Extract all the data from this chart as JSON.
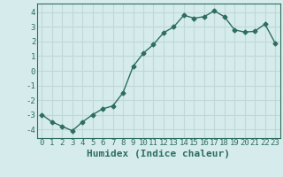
{
  "x": [
    0,
    1,
    2,
    3,
    4,
    5,
    6,
    7,
    8,
    9,
    10,
    11,
    12,
    13,
    14,
    15,
    16,
    17,
    18,
    19,
    20,
    21,
    22,
    23
  ],
  "y": [
    -3.0,
    -3.5,
    -3.8,
    -4.1,
    -3.5,
    -3.0,
    -2.6,
    -2.4,
    -1.5,
    0.3,
    1.2,
    1.8,
    2.6,
    3.0,
    3.8,
    3.6,
    3.7,
    4.1,
    3.7,
    2.8,
    2.65,
    2.7,
    3.2,
    1.9
  ],
  "xlabel": "Humidex (Indice chaleur)",
  "xlim": [
    -0.5,
    23.5
  ],
  "ylim": [
    -4.6,
    4.6
  ],
  "yticks": [
    -4,
    -3,
    -2,
    -1,
    0,
    1,
    2,
    3,
    4
  ],
  "xticks": [
    0,
    1,
    2,
    3,
    4,
    5,
    6,
    7,
    8,
    9,
    10,
    11,
    12,
    13,
    14,
    15,
    16,
    17,
    18,
    19,
    20,
    21,
    22,
    23
  ],
  "line_color": "#2d6e5e",
  "marker": "D",
  "marker_size": 2.5,
  "bg_color": "#d6ecec",
  "grid_color": "#c0d8d8",
  "tick_label_fontsize": 6.5,
  "xlabel_fontsize": 8,
  "line_width": 1.0
}
